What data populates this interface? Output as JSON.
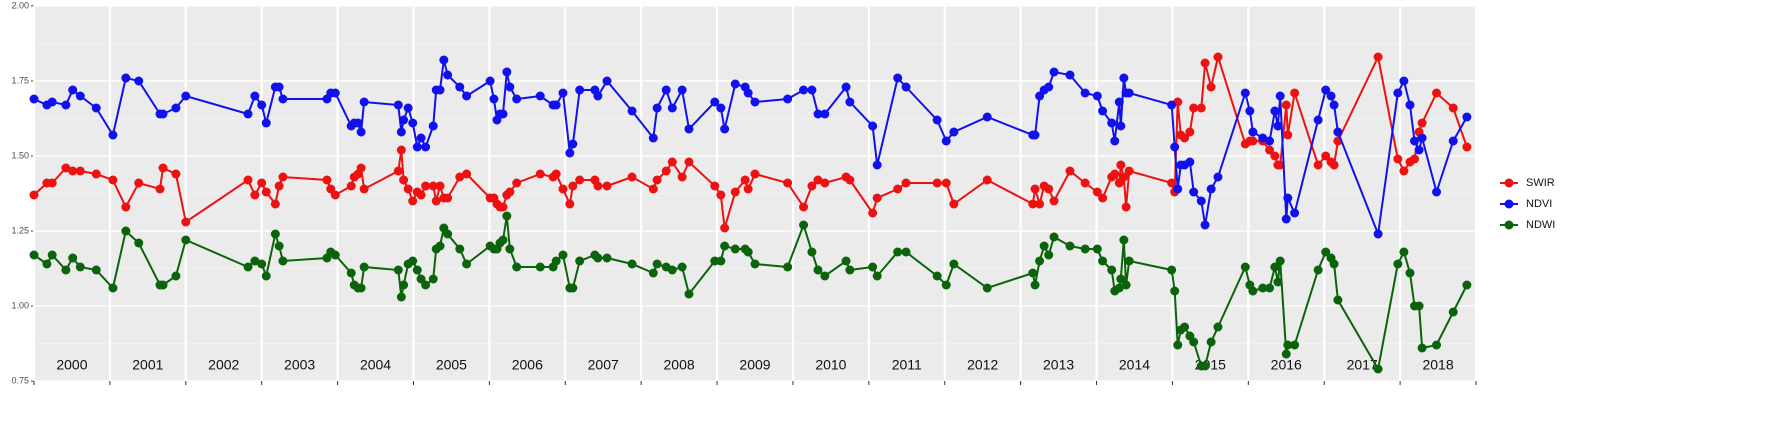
{
  "chart_data": {
    "type": "line",
    "x": [
      2000.0,
      2000.17,
      2000.24,
      2000.42,
      2000.51,
      2000.61,
      2000.82,
      2001.04,
      2001.21,
      2001.38,
      2001.66,
      2001.7,
      2001.87,
      2002.0,
      2002.82,
      2002.91,
      2003.0,
      2003.06,
      2003.18,
      2003.23,
      2003.28,
      2003.86,
      2003.91,
      2003.97,
      2004.18,
      2004.22,
      2004.27,
      2004.31,
      2004.35,
      2004.8,
      2004.84,
      2004.87,
      2004.93,
      2004.99,
      2005.05,
      2005.1,
      2005.16,
      2005.26,
      2005.3,
      2005.35,
      2005.4,
      2005.45,
      2005.61,
      2005.7,
      2006.01,
      2006.06,
      2006.1,
      2006.14,
      2006.18,
      2006.23,
      2006.27,
      2006.36,
      2006.67,
      2006.84,
      2006.88,
      2006.97,
      2007.06,
      2007.1,
      2007.19,
      2007.39,
      2007.43,
      2007.55,
      2007.88,
      2008.16,
      2008.21,
      2008.33,
      2008.41,
      2008.54,
      2008.63,
      2008.97,
      2009.05,
      2009.1,
      2009.24,
      2009.37,
      2009.41,
      2009.5,
      2009.93,
      2010.14,
      2010.25,
      2010.33,
      2010.42,
      2010.7,
      2010.75,
      2011.05,
      2011.11,
      2011.38,
      2011.49,
      2011.9,
      2012.02,
      2012.12,
      2012.56,
      2013.16,
      2013.19,
      2013.25,
      2013.31,
      2013.37,
      2013.44,
      2013.65,
      2013.85,
      2014.01,
      2014.08,
      2014.2,
      2014.24,
      2014.3,
      2014.32,
      2014.36,
      2014.39,
      2014.43,
      2014.99,
      2015.03,
      2015.07,
      2015.11,
      2015.16,
      2015.23,
      2015.28,
      2015.38,
      2015.43,
      2015.51,
      2015.6,
      2015.96,
      2016.02,
      2016.06,
      2016.19,
      2016.28,
      2016.35,
      2016.39,
      2016.42,
      2016.5,
      2016.52,
      2016.61,
      2016.92,
      2017.02,
      2017.09,
      2017.13,
      2017.18,
      2017.71,
      2017.97,
      2018.05,
      2018.13,
      2018.19,
      2018.25,
      2018.29,
      2018.48,
      2018.7,
      2018.88
    ],
    "series": [
      {
        "name": "SWIR",
        "color": "#ee1111",
        "values": [
          1.37,
          1.41,
          1.41,
          1.46,
          1.45,
          1.45,
          1.44,
          1.42,
          1.33,
          1.41,
          1.39,
          1.46,
          1.44,
          1.28,
          1.42,
          1.37,
          1.41,
          1.38,
          1.34,
          1.4,
          1.43,
          1.42,
          1.39,
          1.37,
          1.4,
          1.43,
          1.44,
          1.46,
          1.39,
          1.45,
          1.52,
          1.42,
          1.39,
          1.35,
          1.38,
          1.37,
          1.4,
          1.4,
          1.35,
          1.4,
          1.36,
          1.36,
          1.43,
          1.44,
          1.36,
          1.36,
          1.34,
          1.33,
          1.33,
          1.37,
          1.38,
          1.41,
          1.44,
          1.43,
          1.44,
          1.39,
          1.34,
          1.4,
          1.42,
          1.42,
          1.4,
          1.4,
          1.43,
          1.39,
          1.42,
          1.45,
          1.48,
          1.43,
          1.48,
          1.4,
          1.37,
          1.26,
          1.38,
          1.42,
          1.39,
          1.44,
          1.41,
          1.33,
          1.4,
          1.42,
          1.41,
          1.43,
          1.42,
          1.31,
          1.36,
          1.39,
          1.41,
          1.41,
          1.41,
          1.34,
          1.42,
          1.34,
          1.39,
          1.34,
          1.4,
          1.39,
          1.35,
          1.45,
          1.41,
          1.38,
          1.36,
          1.43,
          1.44,
          1.41,
          1.47,
          1.43,
          1.33,
          1.45,
          1.41,
          1.38,
          1.68,
          1.57,
          1.56,
          1.58,
          1.66,
          1.66,
          1.81,
          1.73,
          1.83,
          1.54,
          1.55,
          1.55,
          1.55,
          1.52,
          1.5,
          1.47,
          1.47,
          1.67,
          1.57,
          1.71,
          1.47,
          1.5,
          1.48,
          1.47,
          1.55,
          1.83,
          1.49,
          1.45,
          1.48,
          1.49,
          1.58,
          1.61,
          1.71,
          1.66,
          1.53
        ]
      },
      {
        "name": "NDVI",
        "color": "#1111ee",
        "values": [
          1.69,
          1.67,
          1.68,
          1.67,
          1.72,
          1.7,
          1.66,
          1.57,
          1.76,
          1.75,
          1.64,
          1.64,
          1.66,
          1.7,
          1.64,
          1.7,
          1.67,
          1.61,
          1.73,
          1.73,
          1.69,
          1.69,
          1.71,
          1.71,
          1.6,
          1.61,
          1.61,
          1.58,
          1.68,
          1.67,
          1.58,
          1.62,
          1.66,
          1.61,
          1.53,
          1.56,
          1.53,
          1.6,
          1.72,
          1.72,
          1.82,
          1.77,
          1.73,
          1.7,
          1.75,
          1.69,
          1.62,
          1.64,
          1.64,
          1.78,
          1.73,
          1.69,
          1.7,
          1.67,
          1.67,
          1.71,
          1.51,
          1.54,
          1.72,
          1.72,
          1.7,
          1.75,
          1.65,
          1.56,
          1.66,
          1.72,
          1.66,
          1.72,
          1.59,
          1.68,
          1.66,
          1.59,
          1.74,
          1.73,
          1.71,
          1.68,
          1.69,
          1.72,
          1.72,
          1.64,
          1.64,
          1.73,
          1.68,
          1.6,
          1.47,
          1.76,
          1.73,
          1.62,
          1.55,
          1.58,
          1.63,
          1.57,
          1.57,
          1.7,
          1.72,
          1.73,
          1.78,
          1.77,
          1.71,
          1.7,
          1.65,
          1.61,
          1.55,
          1.68,
          1.6,
          1.76,
          1.71,
          1.71,
          1.67,
          1.53,
          1.39,
          1.47,
          1.47,
          1.48,
          1.38,
          1.35,
          1.27,
          1.39,
          1.43,
          1.71,
          1.65,
          1.58,
          1.56,
          1.55,
          1.65,
          1.6,
          1.7,
          1.29,
          1.36,
          1.31,
          1.62,
          1.72,
          1.7,
          1.67,
          1.58,
          1.24,
          1.71,
          1.75,
          1.67,
          1.55,
          1.52,
          1.56,
          1.38,
          1.55,
          1.63
        ]
      },
      {
        "name": "NDWI",
        "color": "#0b640b",
        "values": [
          1.17,
          1.14,
          1.17,
          1.12,
          1.16,
          1.13,
          1.12,
          1.06,
          1.25,
          1.21,
          1.07,
          1.07,
          1.1,
          1.22,
          1.13,
          1.15,
          1.14,
          1.1,
          1.24,
          1.2,
          1.15,
          1.16,
          1.18,
          1.17,
          1.11,
          1.07,
          1.06,
          1.06,
          1.13,
          1.12,
          1.03,
          1.07,
          1.14,
          1.15,
          1.12,
          1.09,
          1.07,
          1.09,
          1.19,
          1.2,
          1.26,
          1.24,
          1.19,
          1.14,
          1.2,
          1.19,
          1.19,
          1.21,
          1.22,
          1.3,
          1.19,
          1.13,
          1.13,
          1.13,
          1.15,
          1.17,
          1.06,
          1.06,
          1.15,
          1.17,
          1.16,
          1.16,
          1.14,
          1.11,
          1.14,
          1.13,
          1.12,
          1.13,
          1.04,
          1.15,
          1.15,
          1.2,
          1.19,
          1.19,
          1.18,
          1.14,
          1.13,
          1.27,
          1.18,
          1.12,
          1.1,
          1.15,
          1.12,
          1.13,
          1.1,
          1.18,
          1.18,
          1.1,
          1.07,
          1.14,
          1.06,
          1.11,
          1.07,
          1.15,
          1.2,
          1.17,
          1.23,
          1.2,
          1.19,
          1.19,
          1.15,
          1.12,
          1.05,
          1.06,
          1.09,
          1.22,
          1.07,
          1.15,
          1.12,
          1.05,
          0.87,
          0.92,
          0.93,
          0.9,
          0.88,
          0.8,
          0.8,
          0.88,
          0.93,
          1.13,
          1.07,
          1.05,
          1.06,
          1.06,
          1.13,
          1.08,
          1.15,
          0.84,
          0.87,
          0.87,
          1.12,
          1.18,
          1.16,
          1.14,
          1.02,
          0.79,
          1.14,
          1.18,
          1.11,
          1.0,
          1.0,
          0.86,
          0.87,
          0.98,
          1.07
        ]
      }
    ],
    "xlim": [
      2000,
      2019
    ],
    "xticks": [
      2000,
      2001,
      2002,
      2003,
      2004,
      2005,
      2006,
      2007,
      2008,
      2009,
      2010,
      2011,
      2012,
      2013,
      2014,
      2015,
      2016,
      2017,
      2018,
      2019
    ],
    "year_labels": [
      2000,
      2001,
      2002,
      2003,
      2004,
      2005,
      2006,
      2007,
      2008,
      2009,
      2010,
      2011,
      2012,
      2013,
      2014,
      2015,
      2016,
      2017,
      2018
    ],
    "ylim": [
      0.75,
      2.0
    ],
    "yticks": [
      0.75,
      {
        "value": 1.0,
        "label": "1.00"
      },
      1.25,
      {
        "value": 1.5,
        "label": "1.50"
      },
      1.75,
      {
        "value": 2.0,
        "label": "2.00"
      }
    ],
    "grid": true,
    "legend": "right"
  }
}
